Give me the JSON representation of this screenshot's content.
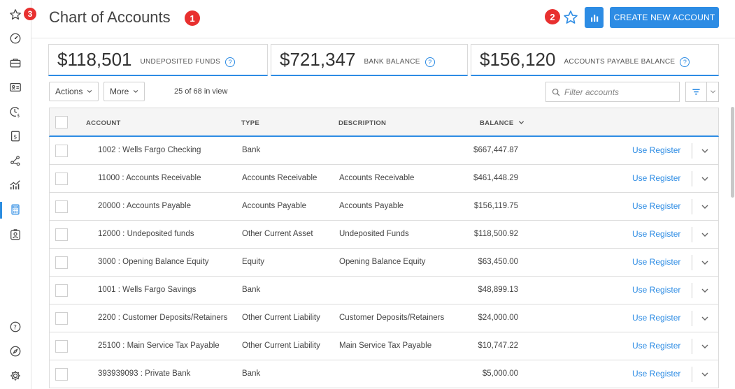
{
  "sidebar": {
    "icons": [
      "star-icon",
      "speedometer-icon",
      "briefcase-icon",
      "contact-card-icon",
      "clock-dollar-icon",
      "invoice-dollar-icon",
      "share-nodes-icon",
      "line-bar-chart-icon",
      "calculator-icon",
      "person-badge-icon",
      "help-icon",
      "compass-icon",
      "gear-icon"
    ],
    "active_item": "calculator-icon"
  },
  "header": {
    "title": "Chart of Accounts",
    "create_button": "CREATE NEW ACCOUNT"
  },
  "badges": {
    "b1": "1",
    "b2": "2",
    "b3": "3"
  },
  "kpis": [
    {
      "value": "$118,501",
      "label": "UNDEPOSITED FUNDS"
    },
    {
      "value": "$721,347",
      "label": "BANK BALANCE"
    },
    {
      "value": "$156,120",
      "label": "ACCOUNTS PAYABLE BALANCE"
    }
  ],
  "help_glyph": "?",
  "toolbar": {
    "actions_label": "Actions",
    "more_label": "More",
    "view_count": "25 of 68 in view",
    "filter_placeholder": "Filter accounts"
  },
  "table": {
    "columns": {
      "account": "ACCOUNT",
      "type": "TYPE",
      "description": "DESCRIPTION",
      "balance": "BALANCE"
    },
    "link_label": "Use Register",
    "rows": [
      {
        "account": "1002 : Wells Fargo Checking",
        "type": "Bank",
        "description": "",
        "balance": "$667,447.87"
      },
      {
        "account": "11000 : Accounts Receivable",
        "type": "Accounts Receivable",
        "description": "Accounts Receivable",
        "balance": "$461,448.29"
      },
      {
        "account": "20000 : Accounts Payable",
        "type": "Accounts Payable",
        "description": "Accounts Payable",
        "balance": "$156,119.75"
      },
      {
        "account": "12000 : Undeposited funds",
        "type": "Other Current Asset",
        "description": "Undeposited Funds",
        "balance": "$118,500.92"
      },
      {
        "account": "3000 : Opening Balance Equity",
        "type": "Equity",
        "description": "Opening Balance Equity",
        "balance": "$63,450.00"
      },
      {
        "account": "1001 : Wells Fargo Savings",
        "type": "Bank",
        "description": "",
        "balance": "$48,899.13"
      },
      {
        "account": "2200 : Customer Deposits/Retainers",
        "type": "Other Current Liability",
        "description": "Customer Deposits/Retainers",
        "balance": "$24,000.00"
      },
      {
        "account": "25100 : Main Service Tax Payable",
        "type": "Other Current Liability",
        "description": "Main Service Tax Payable",
        "balance": "$10,747.22"
      },
      {
        "account": "393939093 : Private Bank",
        "type": "Bank",
        "description": "",
        "balance": "$5,000.00"
      }
    ]
  },
  "colors": {
    "accent": "#2d8ce4",
    "badge": "#e8302f"
  }
}
